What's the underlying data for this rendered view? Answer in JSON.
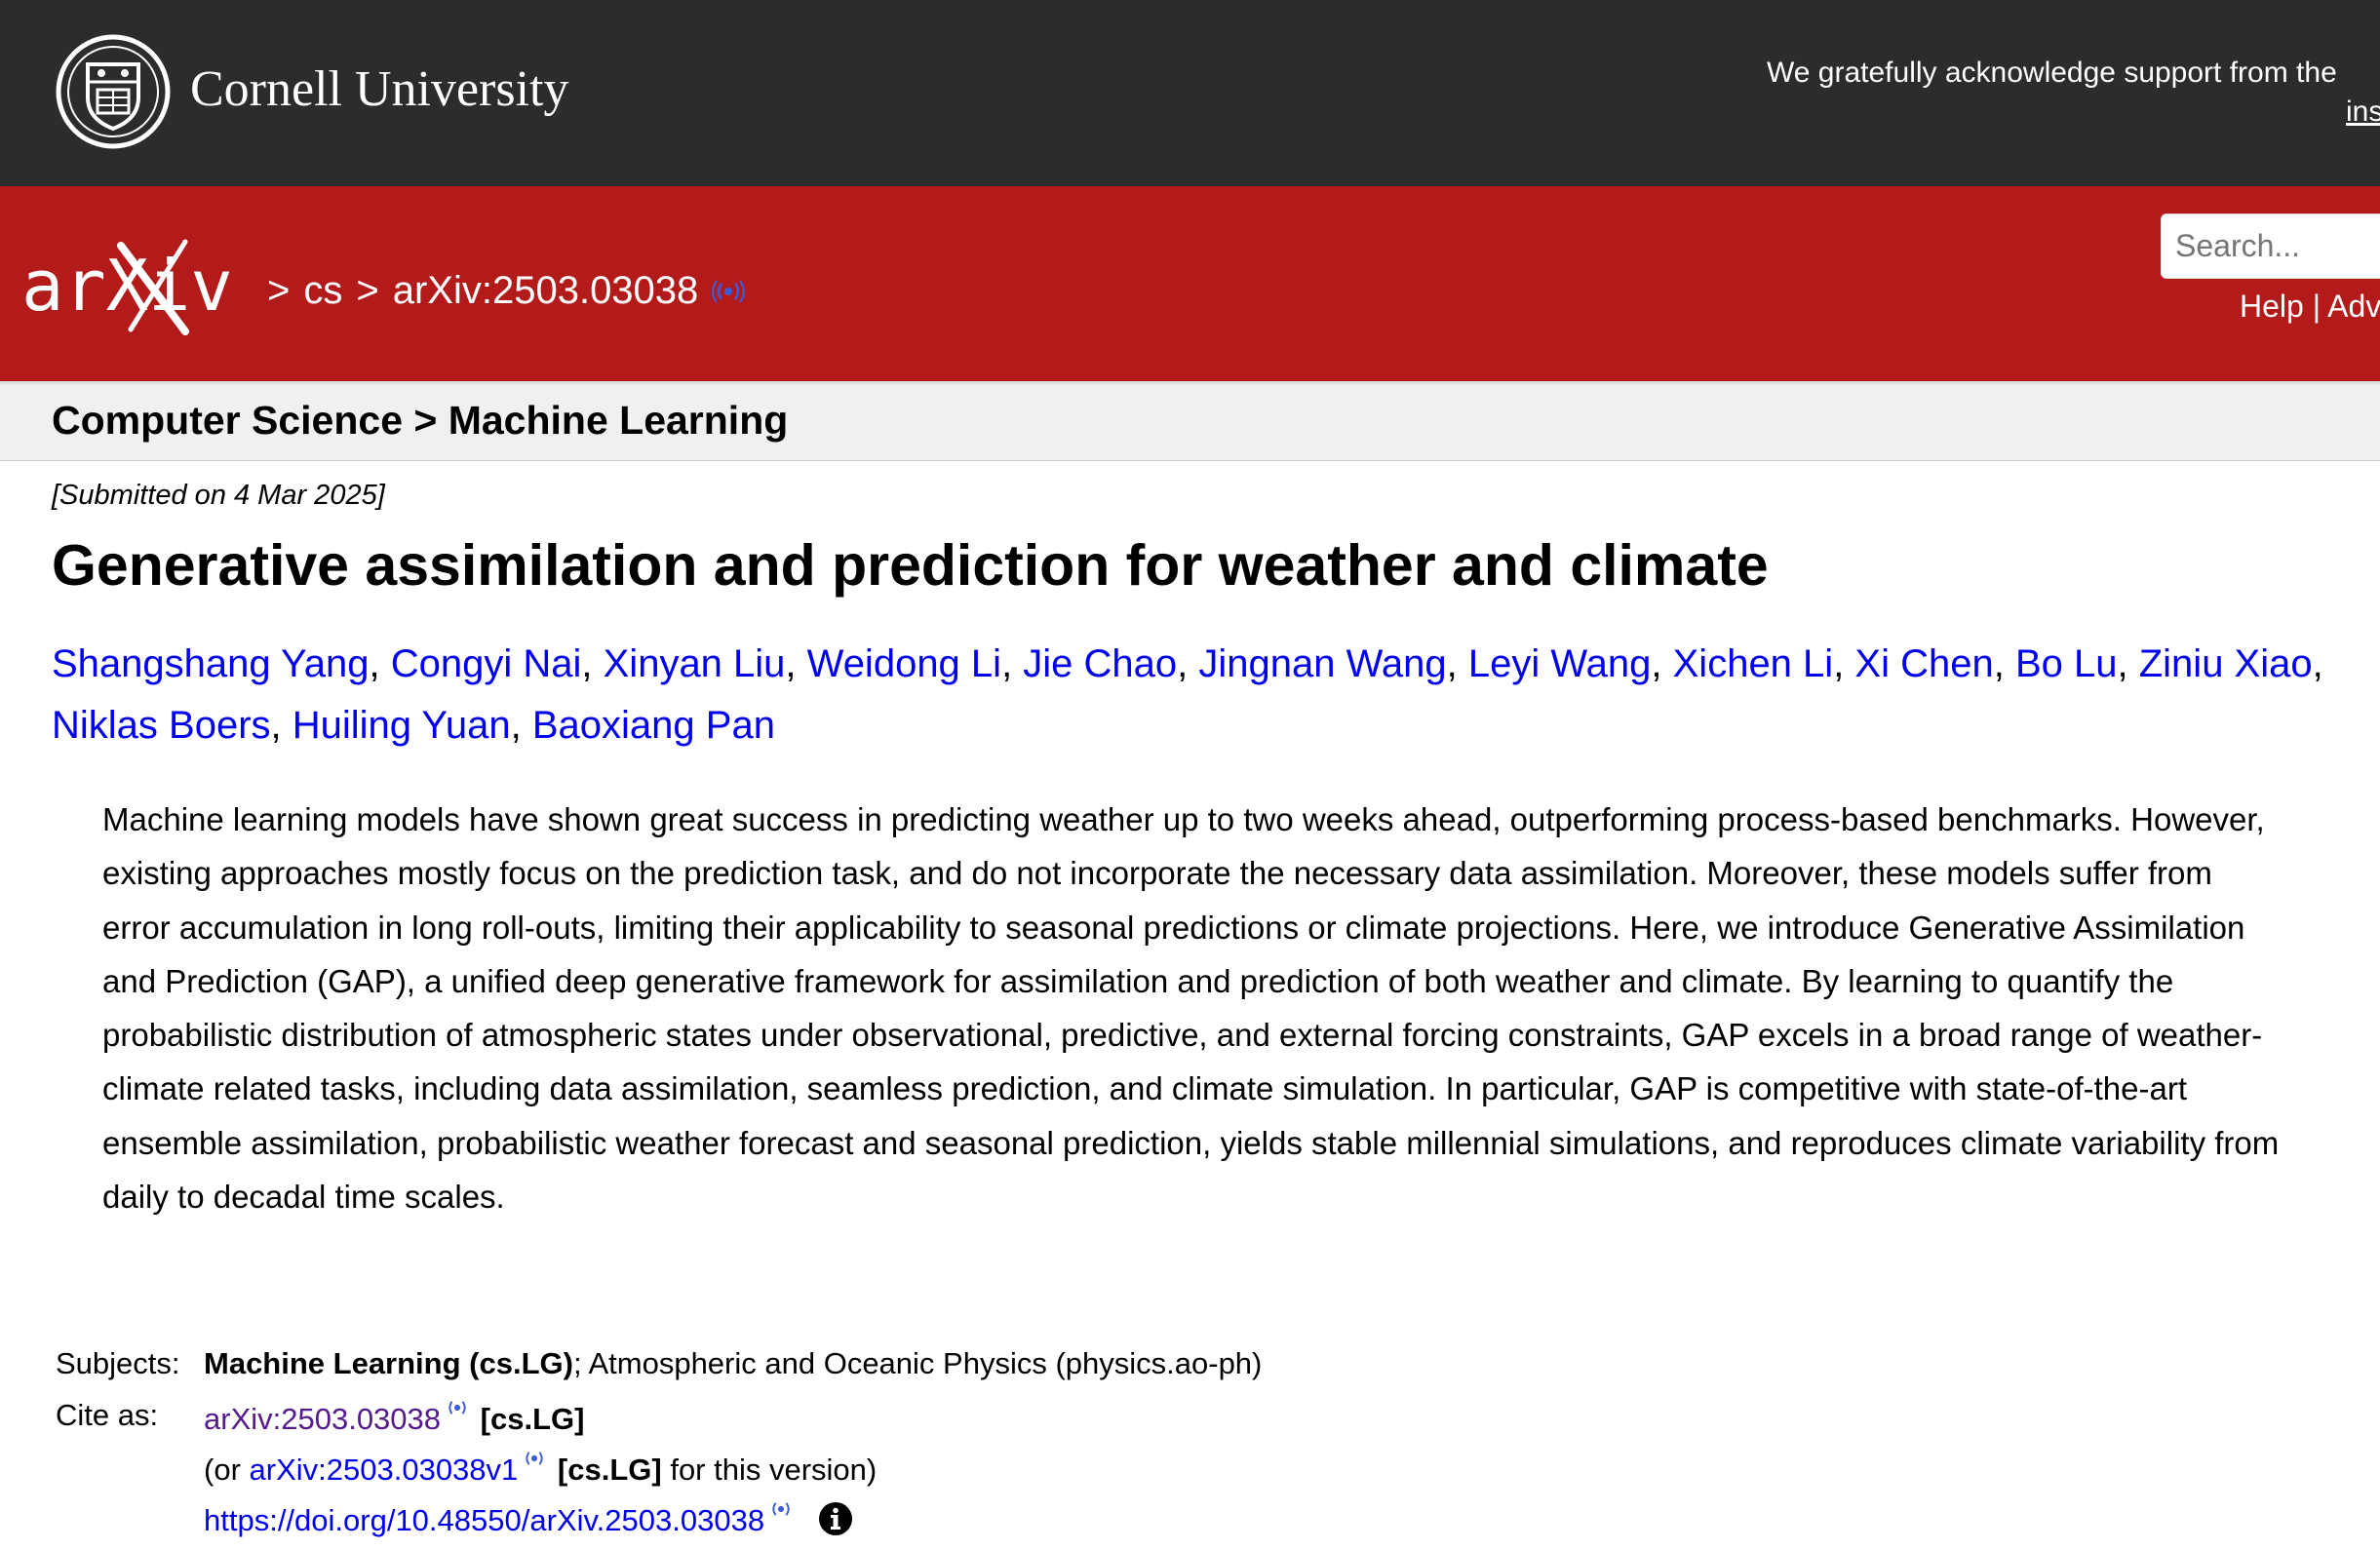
{
  "header": {
    "university_name": "Cornell University",
    "acknowledgement": "We gratefully acknowledge support from the",
    "acknowledgement_link": "ins"
  },
  "nav": {
    "logo_text": "arXiv",
    "breadcrumb_sep": ">",
    "breadcrumb_category": "cs",
    "breadcrumb_id": "arXiv:2503.03038",
    "search_placeholder": "Search...",
    "help_label": "Help",
    "help_divider": "|",
    "advanced_label": "Adv"
  },
  "subheader": {
    "text": "Computer Science > Machine Learning"
  },
  "paper": {
    "submitted": "[Submitted on 4 Mar 2025]",
    "title": "Generative assimilation and prediction for weather and climate",
    "authors": [
      "Shangshang Yang",
      "Congyi Nai",
      "Xinyan Liu",
      "Weidong Li",
      "Jie Chao",
      "Jingnan Wang",
      "Leyi Wang",
      "Xichen Li",
      "Xi Chen",
      "Bo Lu",
      "Ziniu Xiao",
      "Niklas Boers",
      "Huiling Yuan",
      "Baoxiang Pan"
    ],
    "author_separator": ", ",
    "abstract": "Machine learning models have shown great success in predicting weather up to two weeks ahead, outperforming process-based benchmarks. However, existing approaches mostly focus on the prediction task, and do not incorporate the necessary data assimilation. Moreover, these models suffer from error accumulation in long roll-outs, limiting their applicability to seasonal predictions or climate projections. Here, we introduce Generative Assimilation and Prediction (GAP), a unified deep generative framework for assimilation and prediction of both weather and climate. By learning to quantify the probabilistic distribution of atmospheric states under observational, predictive, and external forcing constraints, GAP excels in a broad range of weather-climate related tasks, including data assimilation, seamless prediction, and climate simulation. In particular, GAP is competitive with state-of-the-art ensemble assimilation, probabilistic weather forecast and seasonal prediction, yields stable millennial simulations, and reproduces climate variability from daily to decadal time scales."
  },
  "metadata": {
    "subjects_label": "Subjects:",
    "subjects_primary": "Machine Learning (cs.LG)",
    "subjects_rest": "; Atmospheric and Oceanic Physics (physics.ao-ph)",
    "cite_label": "Cite as:",
    "cite_id": "arXiv:2503.03038",
    "cite_tag": "[cs.LG]",
    "or_prefix": "(or",
    "version_id": "arXiv:2503.03038v1",
    "version_tag": "[cs.LG]",
    "version_suffix": "for this version)",
    "doi": "https://doi.org/10.48550/arXiv.2503.03038"
  },
  "colors": {
    "topbar": "#2c2c2c",
    "brand_red": "#b31b1b",
    "link_blue": "#0000ee",
    "visited_purple": "#551a8b"
  },
  "icons": [
    "cornell-seal-icon",
    "arxiv-logo-icon",
    "signal-icon",
    "info-icon"
  ]
}
